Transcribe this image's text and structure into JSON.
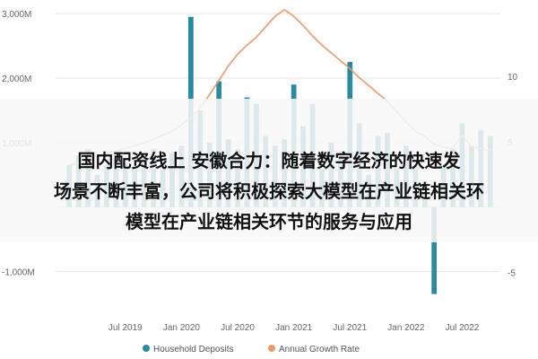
{
  "colors": {
    "bar": "#2a8aa2",
    "line": "#e89a6a",
    "grid": "#e6e6e6",
    "zero_line": "#cccccc",
    "overlay": "rgba(248,248,248,0.86)"
  },
  "headline": {
    "line1": "国内配资线上 安徽合力：随着数字经济的快速发",
    "line2": "场景不断丰富，公司将积极探索大模型在产业链相关环",
    "line3": "模型在产业链相关环节的服务与应用"
  },
  "chart_data": {
    "type": "bar",
    "left_axis": {
      "ticks": [
        -1000,
        0,
        1000,
        2000,
        3000
      ],
      "tick_labels": [
        "-1,000M",
        "",
        "1,000M",
        "2,000M",
        "3,000M"
      ],
      "range": [
        -1550,
        3100
      ]
    },
    "right_axis": {
      "ticks": [
        -5,
        0,
        5,
        10
      ],
      "tick_labels": [
        "-5",
        "",
        "5",
        "10"
      ],
      "range": [
        -7.65,
        15.3
      ]
    },
    "x_tick_labels": [
      "Jul 2019",
      "Jan 2020",
      "Jul 2020",
      "Jan 2021",
      "Jul 2021",
      "Jan 2022",
      "Jul 2022"
    ],
    "x": [
      "Jan 2019",
      "Feb 2019",
      "Mar 2019",
      "Apr 2019",
      "May 2019",
      "Jun 2019",
      "Jul 2019",
      "Aug 2019",
      "Sep 2019",
      "Oct 2019",
      "Nov 2019",
      "Dec 2019",
      "Jan 2020",
      "Feb 2020",
      "Mar 2020",
      "Apr 2020",
      "May 2020",
      "Jun 2020",
      "Jul 2020",
      "Aug 2020",
      "Sep 2020",
      "Oct 2020",
      "Nov 2020",
      "Dec 2020",
      "Jan 2021",
      "Feb 2021",
      "Mar 2021",
      "Apr 2021",
      "May 2021",
      "Jun 2021",
      "Jul 2021",
      "Aug 2021",
      "Sep 2021",
      "Oct 2021",
      "Nov 2021",
      "Dec 2021",
      "Jan 2022",
      "Feb 2022",
      "Mar 2022",
      "Apr 2022",
      "May 2022",
      "Jun 2022",
      "Jul 2022",
      "Aug 2022",
      "Sep 2022",
      "Oct 2022"
    ],
    "series": [
      {
        "name": "Household Deposits",
        "type": "bar",
        "axis": "left",
        "values": [
          650,
          800,
          900,
          500,
          650,
          750,
          700,
          600,
          800,
          900,
          750,
          850,
          950,
          2950,
          1500,
          1000,
          1950,
          1050,
          900,
          1700,
          1600,
          1100,
          950,
          1050,
          1900,
          1250,
          1600,
          600,
          1000,
          850,
          2250,
          1300,
          500,
          1100,
          1150,
          600,
          950,
          650,
          400,
          -1350,
          650,
          900,
          1300,
          950,
          1200,
          1100
        ]
      },
      {
        "name": "Annual Growth Rate",
        "type": "line",
        "axis": "right",
        "values": [
          3.2,
          3.4,
          3.7,
          3.9,
          4.1,
          4.3,
          4.5,
          4.7,
          4.9,
          5.2,
          5.5,
          5.8,
          6.3,
          6.8,
          7.6,
          8.6,
          9.7,
          10.8,
          11.7,
          12.4,
          13.0,
          13.8,
          14.6,
          15.1,
          14.6,
          13.9,
          13.1,
          12.4,
          11.8,
          11.2,
          10.6,
          9.9,
          9.3,
          8.7,
          8.1,
          7.3,
          6.5,
          5.8,
          5.4,
          4.8,
          4.6,
          4.5,
          5.5,
          4.6,
          4.5,
          4.3
        ]
      }
    ],
    "legend": [
      "Household Deposits",
      "Annual Growth Rate"
    ],
    "legend_position": "bottom",
    "grid": true
  }
}
